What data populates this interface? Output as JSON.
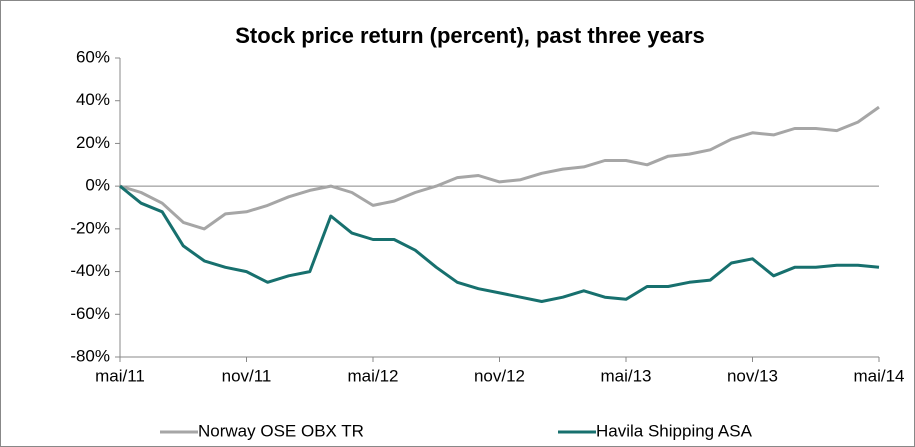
{
  "chart_data": {
    "type": "line",
    "title": "Stock price return (percent), past three years",
    "categories": [
      "mai/11",
      null,
      null,
      null,
      null,
      null,
      "nov/11",
      null,
      null,
      null,
      null,
      null,
      "mai/12",
      null,
      null,
      null,
      null,
      null,
      "nov/12",
      null,
      null,
      null,
      null,
      null,
      "mai/13",
      null,
      null,
      null,
      null,
      null,
      "nov/13",
      null,
      null,
      null,
      null,
      null,
      "mai/14"
    ],
    "series": [
      {
        "name": "Norway OSE OBX TR",
        "color": "#a6a6a6",
        "values": [
          0,
          -3,
          -8,
          -17,
          -20,
          -13,
          -12,
          -9,
          -5,
          -2,
          0,
          -3,
          -9,
          -7,
          -3,
          0,
          4,
          5,
          2,
          3,
          6,
          8,
          9,
          12,
          12,
          10,
          14,
          15,
          17,
          22,
          25,
          24,
          27,
          27,
          26,
          30,
          37
        ]
      },
      {
        "name": "Havila Shipping ASA",
        "color": "#17706e",
        "values": [
          0,
          -8,
          -12,
          -28,
          -35,
          -38,
          -40,
          -45,
          -42,
          -40,
          -14,
          -22,
          -25,
          -25,
          -30,
          -38,
          -45,
          -48,
          -50,
          -52,
          -54,
          -52,
          -49,
          -52,
          -53,
          -47,
          -47,
          -45,
          -44,
          -36,
          -34,
          -42,
          -38,
          -38,
          -37,
          -37,
          -38
        ]
      }
    ],
    "ylim": [
      -80,
      60
    ],
    "yticks": [
      {
        "value": -80,
        "label": "-80%"
      },
      {
        "value": -60,
        "label": "-60%"
      },
      {
        "value": -40,
        "label": "-40%"
      },
      {
        "value": -20,
        "label": "-20%"
      },
      {
        "value": 0,
        "label": "0%"
      },
      {
        "value": 20,
        "label": "20%"
      },
      {
        "value": 40,
        "label": "40%"
      },
      {
        "value": 60,
        "label": "60%"
      }
    ],
    "legend": "bottom"
  }
}
